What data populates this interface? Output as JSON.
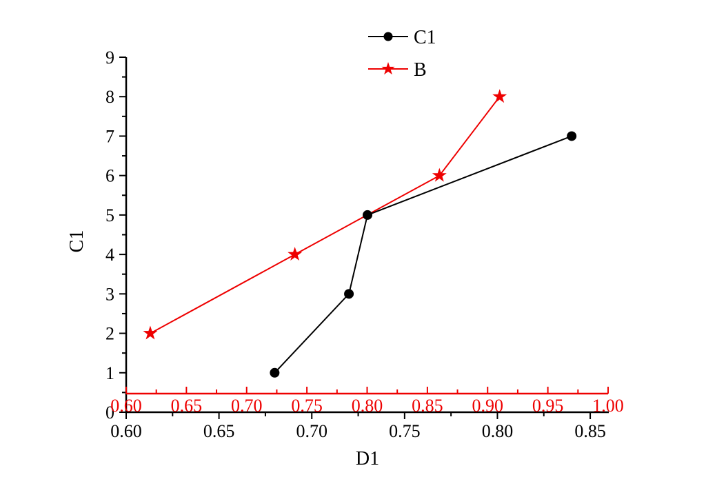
{
  "chart_data": {
    "type": "line",
    "title": "",
    "grid": false,
    "background": "#ffffff",
    "colors": {
      "black": "#000000",
      "red": "#ee0000"
    },
    "legend": {
      "position": "top-center",
      "border": false,
      "entries": [
        {
          "label": "C1",
          "marker": "circle",
          "color": "#000000"
        },
        {
          "label": "B",
          "marker": "star",
          "color": "#ee0000"
        }
      ]
    },
    "axes": {
      "y": {
        "label": "C1",
        "min": 0,
        "max": 9,
        "major_values": [
          0,
          1,
          2,
          3,
          4,
          5,
          6,
          7,
          8,
          9
        ],
        "minor_values": [
          0.5,
          1.5,
          2.5,
          3.5,
          4.5,
          5.5,
          6.5,
          7.5,
          8.5
        ],
        "tick_labels": [
          "0",
          "1",
          "2",
          "3",
          "4",
          "5",
          "6",
          "7",
          "8",
          "9"
        ]
      },
      "x_black": {
        "label": "D1",
        "min": 0.6,
        "max": 0.86,
        "major_values": [
          0.6,
          0.65,
          0.7,
          0.75,
          0.8,
          0.85
        ],
        "minor_values": [
          0.625,
          0.675,
          0.725,
          0.775,
          0.825
        ],
        "tick_labels": [
          "0.60",
          "0.65",
          "0.70",
          "0.75",
          "0.80",
          "0.85"
        ]
      },
      "x_red": {
        "label": "",
        "min": 0.6,
        "max": 1.0,
        "major_values": [
          0.6,
          0.65,
          0.7,
          0.75,
          0.8,
          0.85,
          0.9,
          0.95,
          1.0
        ],
        "minor_values": [
          0.625,
          0.675,
          0.725,
          0.775,
          0.825,
          0.875,
          0.925,
          0.975
        ],
        "tick_labels": [
          "0.60",
          "0.65",
          "0.70",
          "0.75",
          "0.80",
          "0.85",
          "0.90",
          "0.95",
          "1.00"
        ],
        "position_y_value": 0.47
      }
    },
    "series": [
      {
        "name": "C1",
        "color": "#000000",
        "marker": "circle",
        "x_axis": "x_black",
        "points": [
          [
            0.68,
            1
          ],
          [
            0.72,
            3
          ],
          [
            0.73,
            5
          ],
          [
            0.84,
            7
          ]
        ]
      },
      {
        "name": "B",
        "color": "#ee0000",
        "marker": "star",
        "x_axis": "x_red",
        "points": [
          [
            0.62,
            2
          ],
          [
            0.74,
            4
          ],
          [
            0.86,
            6
          ],
          [
            0.91,
            8
          ]
        ]
      }
    ]
  }
}
